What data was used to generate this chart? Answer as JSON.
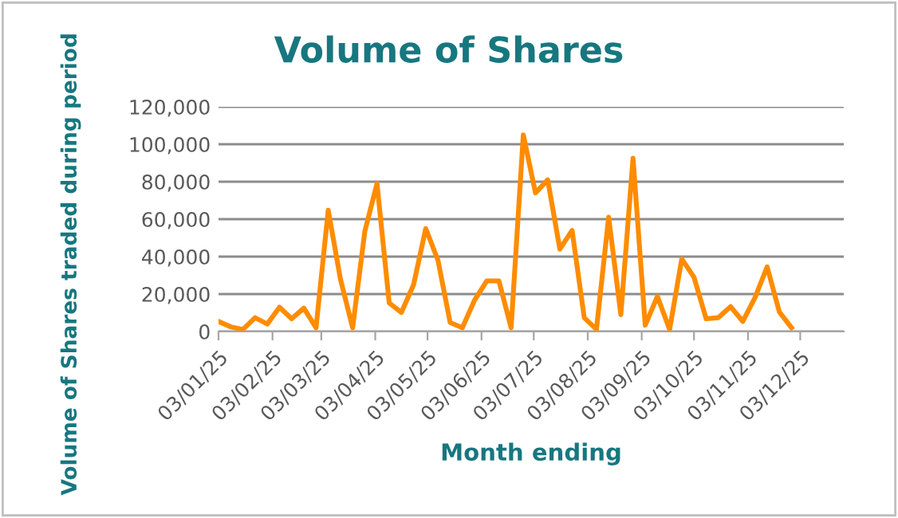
{
  "chart_data": {
    "type": "line",
    "title": "Volume of Shares",
    "xlabel": "Month ending",
    "ylabel": "Volume of Shares traded during period",
    "x": [
      "2025-01-03",
      "2025-01-10",
      "2025-01-17",
      "2025-01-24",
      "2025-01-31",
      "2025-02-07",
      "2025-02-14",
      "2025-02-21",
      "2025-02-28",
      "2025-03-07",
      "2025-03-14",
      "2025-03-21",
      "2025-03-28",
      "2025-04-04",
      "2025-04-11",
      "2025-04-18",
      "2025-04-25",
      "2025-05-02",
      "2025-05-09",
      "2025-05-16",
      "2025-05-23",
      "2025-05-30",
      "2025-06-06",
      "2025-06-13",
      "2025-06-20",
      "2025-06-27",
      "2025-07-04",
      "2025-07-11",
      "2025-07-18",
      "2025-07-25",
      "2025-08-01",
      "2025-08-08",
      "2025-08-15",
      "2025-08-22",
      "2025-08-29",
      "2025-09-05",
      "2025-09-12",
      "2025-09-19",
      "2025-09-26",
      "2025-10-03",
      "2025-10-10",
      "2025-10-17",
      "2025-10-24",
      "2025-10-31",
      "2025-11-07",
      "2025-11-14",
      "2025-11-21",
      "2025-11-28"
    ],
    "series": [
      {
        "color": "#ff8c00",
        "values": [
          5400,
          2500,
          1100,
          7400,
          4000,
          13000,
          6800,
          12500,
          2000,
          64800,
          28000,
          2000,
          53500,
          79000,
          15300,
          10200,
          25000,
          55000,
          38000,
          4800,
          2000,
          16700,
          27000,
          27000,
          2000,
          105000,
          74000,
          81000,
          44000,
          54000,
          7400,
          1100,
          61000,
          9000,
          92500,
          3400,
          18700,
          1100,
          38800,
          29000,
          6800,
          7400,
          13300,
          5400,
          18000,
          34500,
          10500,
          2000
        ]
      }
    ],
    "xlim": [
      "2025-01-03",
      "2025-12-28"
    ],
    "xticks": [
      {
        "value": "2025-01-03",
        "label": "03/01/25"
      },
      {
        "value": "2025-02-03",
        "label": "03/02/25"
      },
      {
        "value": "2025-03-03",
        "label": "03/03/25"
      },
      {
        "value": "2025-04-03",
        "label": "03/04/25"
      },
      {
        "value": "2025-05-03",
        "label": "03/05/25"
      },
      {
        "value": "2025-06-03",
        "label": "03/06/25"
      },
      {
        "value": "2025-07-03",
        "label": "03/07/25"
      },
      {
        "value": "2025-08-03",
        "label": "03/08/25"
      },
      {
        "value": "2025-09-03",
        "label": "03/09/25"
      },
      {
        "value": "2025-10-03",
        "label": "03/10/25"
      },
      {
        "value": "2025-11-03",
        "label": "03/11/25"
      },
      {
        "value": "2025-12-03",
        "label": "03/12/25"
      }
    ],
    "ylim": [
      0,
      120000
    ],
    "yticks": [
      {
        "value": 0,
        "label": "0"
      },
      {
        "value": 20000,
        "label": "20,000"
      },
      {
        "value": 40000,
        "label": "40,000"
      },
      {
        "value": 60000,
        "label": "60,000"
      },
      {
        "value": 80000,
        "label": "80,000"
      },
      {
        "value": 100000,
        "label": "100,000"
      },
      {
        "value": 120000,
        "label": "120,000"
      }
    ],
    "grid": "y",
    "marker": "none",
    "line_style": "solid"
  }
}
